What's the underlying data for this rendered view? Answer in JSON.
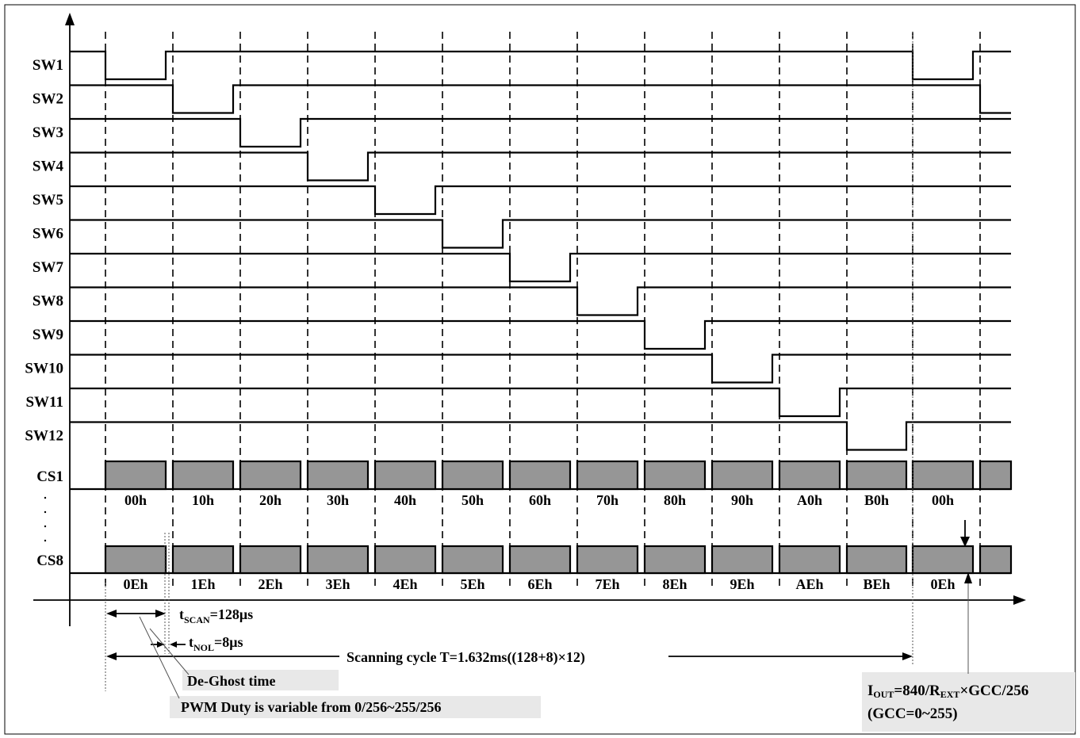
{
  "signal_labels": [
    "SW1",
    "SW2",
    "SW3",
    "SW4",
    "SW5",
    "SW6",
    "SW7",
    "SW8",
    "SW9",
    "SW10",
    "SW11",
    "SW12"
  ],
  "cs1": {
    "label": "CS1",
    "slots": [
      "00h",
      "10h",
      "20h",
      "30h",
      "40h",
      "50h",
      "60h",
      "70h",
      "80h",
      "90h",
      "A0h",
      "B0h",
      "00h"
    ]
  },
  "cs8": {
    "label": "CS8",
    "slots": [
      "0Eh",
      "1Eh",
      "2Eh",
      "3Eh",
      "4Eh",
      "5Eh",
      "6Eh",
      "7Eh",
      "8Eh",
      "9Eh",
      "AEh",
      "BEh",
      "0Eh"
    ]
  },
  "annotations": {
    "tscan_main": "t",
    "tscan_sub": "SCAN",
    "tscan_value": "=128μs",
    "tnol_main": "t",
    "tnol_sub": "NOL",
    "tnol_value": "=8μs",
    "scan_cycle": "Scanning cycle T=1.632ms((128+8)×12)",
    "deghost": "De-Ghost time",
    "pwm_duty": "PWM Duty is variable from 0/256~255/256",
    "iout_i": "I",
    "iout_out": "OUT",
    "iout_mid": "=840/R",
    "iout_ext": "EXT",
    "iout_tail": "×GCC/256",
    "gcc_range": "(GCC=0~255)"
  },
  "colors": {
    "pulse_fill": "#969696",
    "box_fill": "#e8e8e8",
    "line": "#000000"
  }
}
